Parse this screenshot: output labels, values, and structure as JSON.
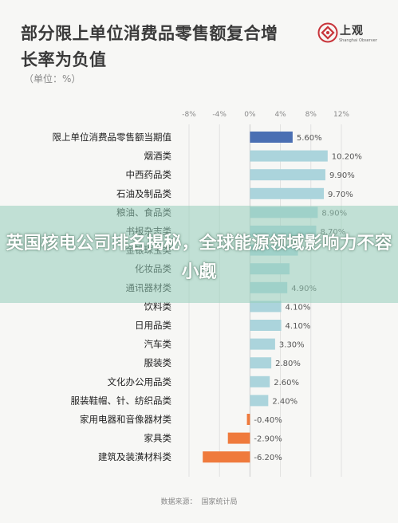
{
  "header": {
    "title": "部分限上单位消费品零售额复合增长率为负值",
    "subtitle": "（单位：%）",
    "logo_text": "上观",
    "logo_sub": "Shanghai Observer"
  },
  "banner": {
    "text": "英国核电公司排名揭秘，全球能源领域影响力不容小觑"
  },
  "footer": {
    "source_label": "数据来源：",
    "source_name": "国家统计局"
  },
  "colors": {
    "highlight": "#4a6fb3",
    "positive": "#abd4dc",
    "negative": "#ef7a3c"
  },
  "chart_data": {
    "type": "bar",
    "orientation": "horizontal",
    "xlim": [
      -8,
      12
    ],
    "xticks": [
      "-8%",
      "-4%",
      "0%",
      "4%",
      "8%",
      "12%"
    ],
    "xtick_values": [
      -8,
      -4,
      0,
      4,
      8,
      12
    ],
    "categories": [
      "限上单位消费品零售额当期值",
      "烟酒类",
      "中西药品类",
      "石油及制品类",
      "粮油、食品类",
      "书报杂志类",
      "金银珠宝类",
      "化妆品类",
      "通讯器材类",
      "饮料类",
      "日用品类",
      "汽车类",
      "服装类",
      "文化办公用品类",
      "服装鞋帽、针、纺织品类",
      "家用电器和音像器材类",
      "家具类",
      "建筑及装潢材料类"
    ],
    "values": [
      5.6,
      10.2,
      9.9,
      9.7,
      8.9,
      8.7,
      6.3,
      5.2,
      4.9,
      4.1,
      4.1,
      3.3,
      2.8,
      2.6,
      2.4,
      -0.4,
      -2.9,
      -6.2
    ],
    "labels": [
      "5.60%",
      "10.20%",
      "9.90%",
      "9.70%",
      "8.90%",
      "8.70%",
      "",
      "",
      "4.90%",
      "4.10%",
      "4.10%",
      "3.30%",
      "2.80%",
      "2.60%",
      "2.40%",
      "-0.40%",
      "-2.90%",
      "-6.20%"
    ],
    "highlight_index": 0,
    "grid": true,
    "legend": "none"
  }
}
